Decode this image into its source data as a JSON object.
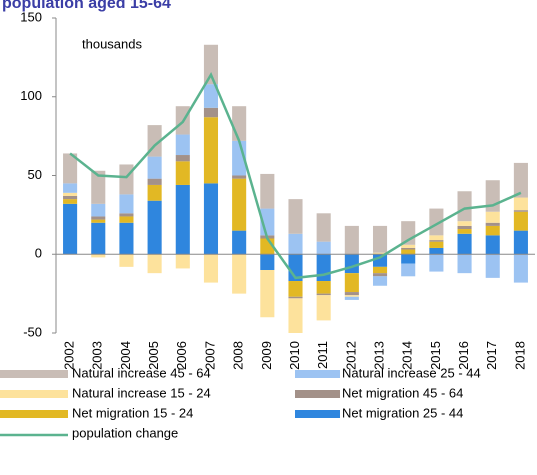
{
  "chart_data": {
    "type": "bar",
    "title": "population aged 15-64",
    "annotation": "thousands",
    "categories": [
      "2002",
      "2003",
      "2004",
      "2005",
      "2006",
      "2007",
      "2008",
      "2009",
      "2010",
      "2011",
      "2012",
      "2013",
      "2014",
      "2015",
      "2016",
      "2017",
      "2018"
    ],
    "ylim": [
      -50,
      150
    ],
    "yticks": [
      -50,
      0,
      50,
      100,
      150
    ],
    "series": [
      {
        "name": "Natural increase 45 - 64",
        "color": "#c9bdb6",
        "values": [
          19,
          21,
          19,
          20,
          18,
          25,
          22,
          22,
          22,
          18,
          18,
          17,
          15,
          17,
          19,
          20,
          22
        ]
      },
      {
        "name": "Natural increase 25 - 44",
        "color": "#9cc3f2",
        "values": [
          6,
          8,
          12,
          14,
          13,
          15,
          22,
          17,
          13,
          8,
          -2,
          -6,
          -8,
          -11,
          -12,
          -15,
          -18
        ]
      },
      {
        "name": "Natural increase 15 - 24",
        "color": "#fde29c",
        "values": [
          2,
          -2,
          -8,
          -12,
          -9,
          -18,
          -25,
          -30,
          -22,
          -16,
          -1,
          1,
          2,
          3,
          3,
          7,
          8
        ]
      },
      {
        "name": "Net migration 45 - 64",
        "color": "#a39189",
        "values": [
          2,
          2,
          2,
          4,
          4,
          6,
          2,
          2,
          -1,
          -1,
          -2,
          -2,
          1,
          1,
          2,
          2,
          1
        ]
      },
      {
        "name": "Net migration 15 - 24",
        "color": "#e2b824",
        "values": [
          3,
          2,
          4,
          10,
          15,
          42,
          33,
          10,
          -10,
          -8,
          -12,
          -4,
          3,
          4,
          3,
          6,
          12
        ]
      },
      {
        "name": "Net migration 25 - 44",
        "color": "#2f86de",
        "values": [
          32,
          20,
          20,
          34,
          44,
          45,
          15,
          -10,
          -17,
          -17,
          -12,
          -8,
          -6,
          4,
          13,
          12,
          15
        ]
      },
      {
        "name": "population change",
        "type": "line",
        "color": "#5bb38f",
        "values": [
          64,
          50,
          49,
          69,
          84,
          114,
          72,
          10,
          -15,
          -13,
          -8,
          -2,
          9,
          19,
          29,
          31,
          39
        ]
      }
    ]
  }
}
